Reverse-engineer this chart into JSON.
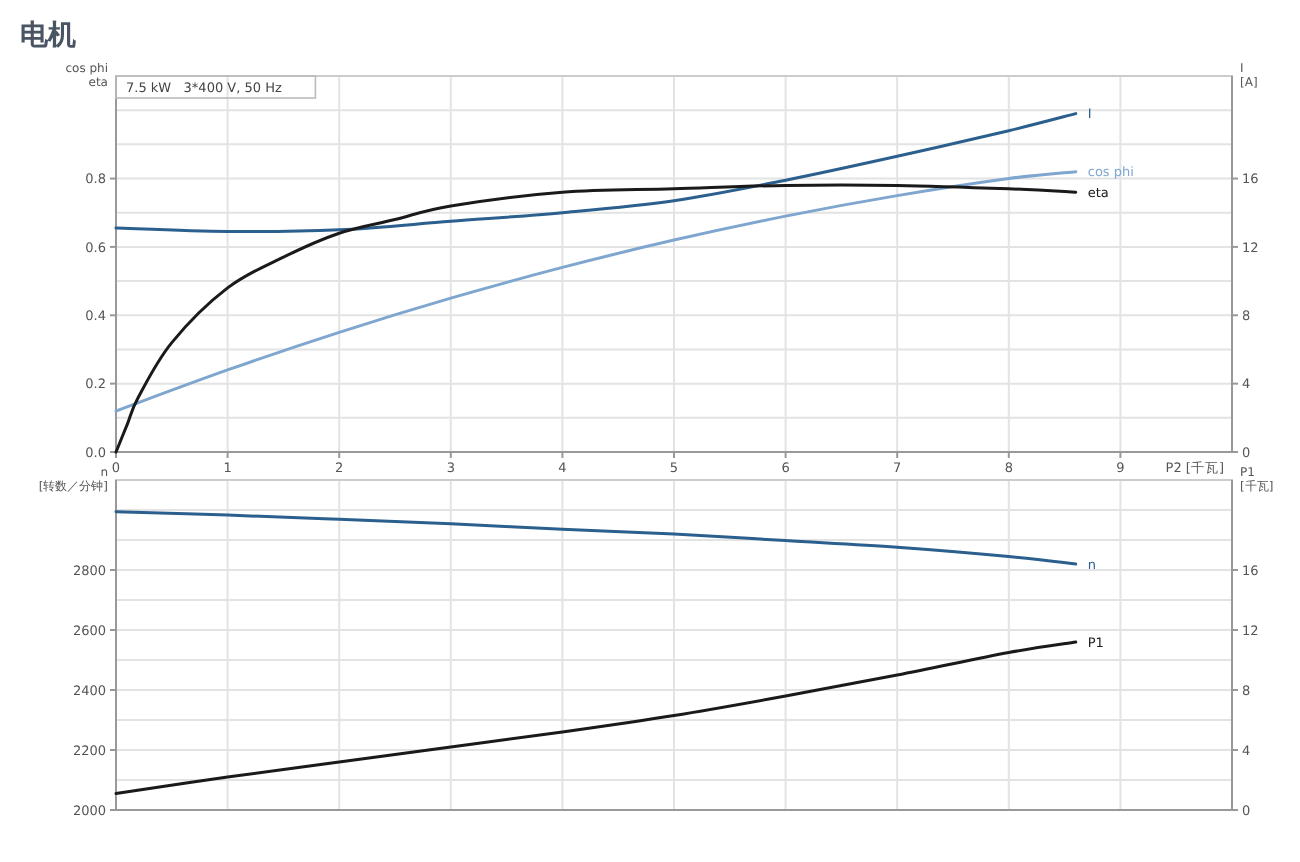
{
  "chart_data": [
    {
      "type": "line",
      "title": "电机",
      "annotations": [
        "7.5 kW   3*400 V, 50 Hz"
      ],
      "xlabel": "P2 [千瓦]",
      "ylabel": "cos phi\neta",
      "y2label": "I\n[A]",
      "grid": true,
      "xlim": [
        0,
        10
      ],
      "xticks": [
        0,
        1,
        2,
        3,
        4,
        5,
        6,
        7,
        8,
        9
      ],
      "ylim": [
        0,
        1.1
      ],
      "yticks": [
        {
          "value": 0,
          "label": "0.0"
        },
        {
          "value": 0.1,
          "label": null
        },
        0.2,
        {
          "value": 0.3,
          "label": null
        },
        0.4,
        {
          "value": 0.5,
          "label": null
        },
        0.6,
        {
          "value": 0.7,
          "label": null
        },
        0.8,
        {
          "value": 0.9,
          "label": null
        },
        {
          "value": 1.0,
          "label": null
        }
      ],
      "y2lim": [
        0,
        22
      ],
      "y2ticks": [
        0,
        4,
        8,
        12,
        16
      ],
      "series": [
        {
          "name": "I",
          "color": "#2b5f8e",
          "axis": "y2",
          "x": [
            0,
            1,
            2,
            3,
            4,
            5,
            6,
            7,
            8,
            8.6
          ],
          "values": [
            13.1,
            12.9,
            13.0,
            13.5,
            14.0,
            14.7,
            15.9,
            17.3,
            18.8,
            19.8
          ]
        },
        {
          "name": "cos phi",
          "color": "#7ea6cf",
          "x": [
            0,
            1,
            2,
            3,
            4,
            5,
            6,
            7,
            8,
            8.6
          ],
          "values": [
            0.12,
            0.24,
            0.35,
            0.45,
            0.54,
            0.62,
            0.69,
            0.75,
            0.8,
            0.82
          ]
        },
        {
          "name": "eta",
          "color": "#1a1a1a",
          "x": [
            0,
            0.1,
            0.2,
            0.5,
            1,
            1.5,
            2,
            2.5,
            3,
            4,
            5,
            6,
            7,
            8,
            8.6
          ],
          "values": [
            0,
            0.08,
            0.16,
            0.32,
            0.48,
            0.57,
            0.64,
            0.68,
            0.72,
            0.76,
            0.77,
            0.78,
            0.78,
            0.77,
            0.76
          ]
        }
      ]
    },
    {
      "type": "line",
      "ylabel": "n\n[转数／分钟]",
      "y2label": "P1\n[千瓦]",
      "grid": true,
      "tick_labels": "y",
      "xlim": [
        0,
        10
      ],
      "xticks": [
        0,
        1,
        2,
        3,
        4,
        5,
        6,
        7,
        8,
        9
      ],
      "ylim": [
        2000,
        3100
      ],
      "yticks": [
        2000,
        {
          "value": 2100,
          "label": null
        },
        2200,
        {
          "value": 2300,
          "label": null
        },
        2400,
        {
          "value": 2500,
          "label": null
        },
        2600,
        {
          "value": 2700,
          "label": null
        },
        2800,
        {
          "value": 2900,
          "label": null
        },
        {
          "value": 3000,
          "label": null
        }
      ],
      "y2lim": [
        0,
        22
      ],
      "y2ticks": [
        0,
        4,
        8,
        12,
        16
      ],
      "series": [
        {
          "name": "n",
          "color": "#2b5f8e",
          "x": [
            0,
            1,
            2,
            3,
            4,
            5,
            6,
            7,
            8,
            8.6
          ],
          "values": [
            2994,
            2983,
            2969,
            2954,
            2936,
            2920,
            2898,
            2876,
            2845,
            2820
          ]
        },
        {
          "name": "P1",
          "color": "#1a1a1a",
          "axis": "y2",
          "x": [
            0,
            1,
            2,
            3,
            4,
            5,
            6,
            7,
            8,
            8.6
          ],
          "values": [
            1.1,
            2.2,
            3.2,
            4.2,
            5.2,
            6.3,
            7.6,
            9.0,
            10.5,
            11.2
          ]
        }
      ]
    }
  ]
}
